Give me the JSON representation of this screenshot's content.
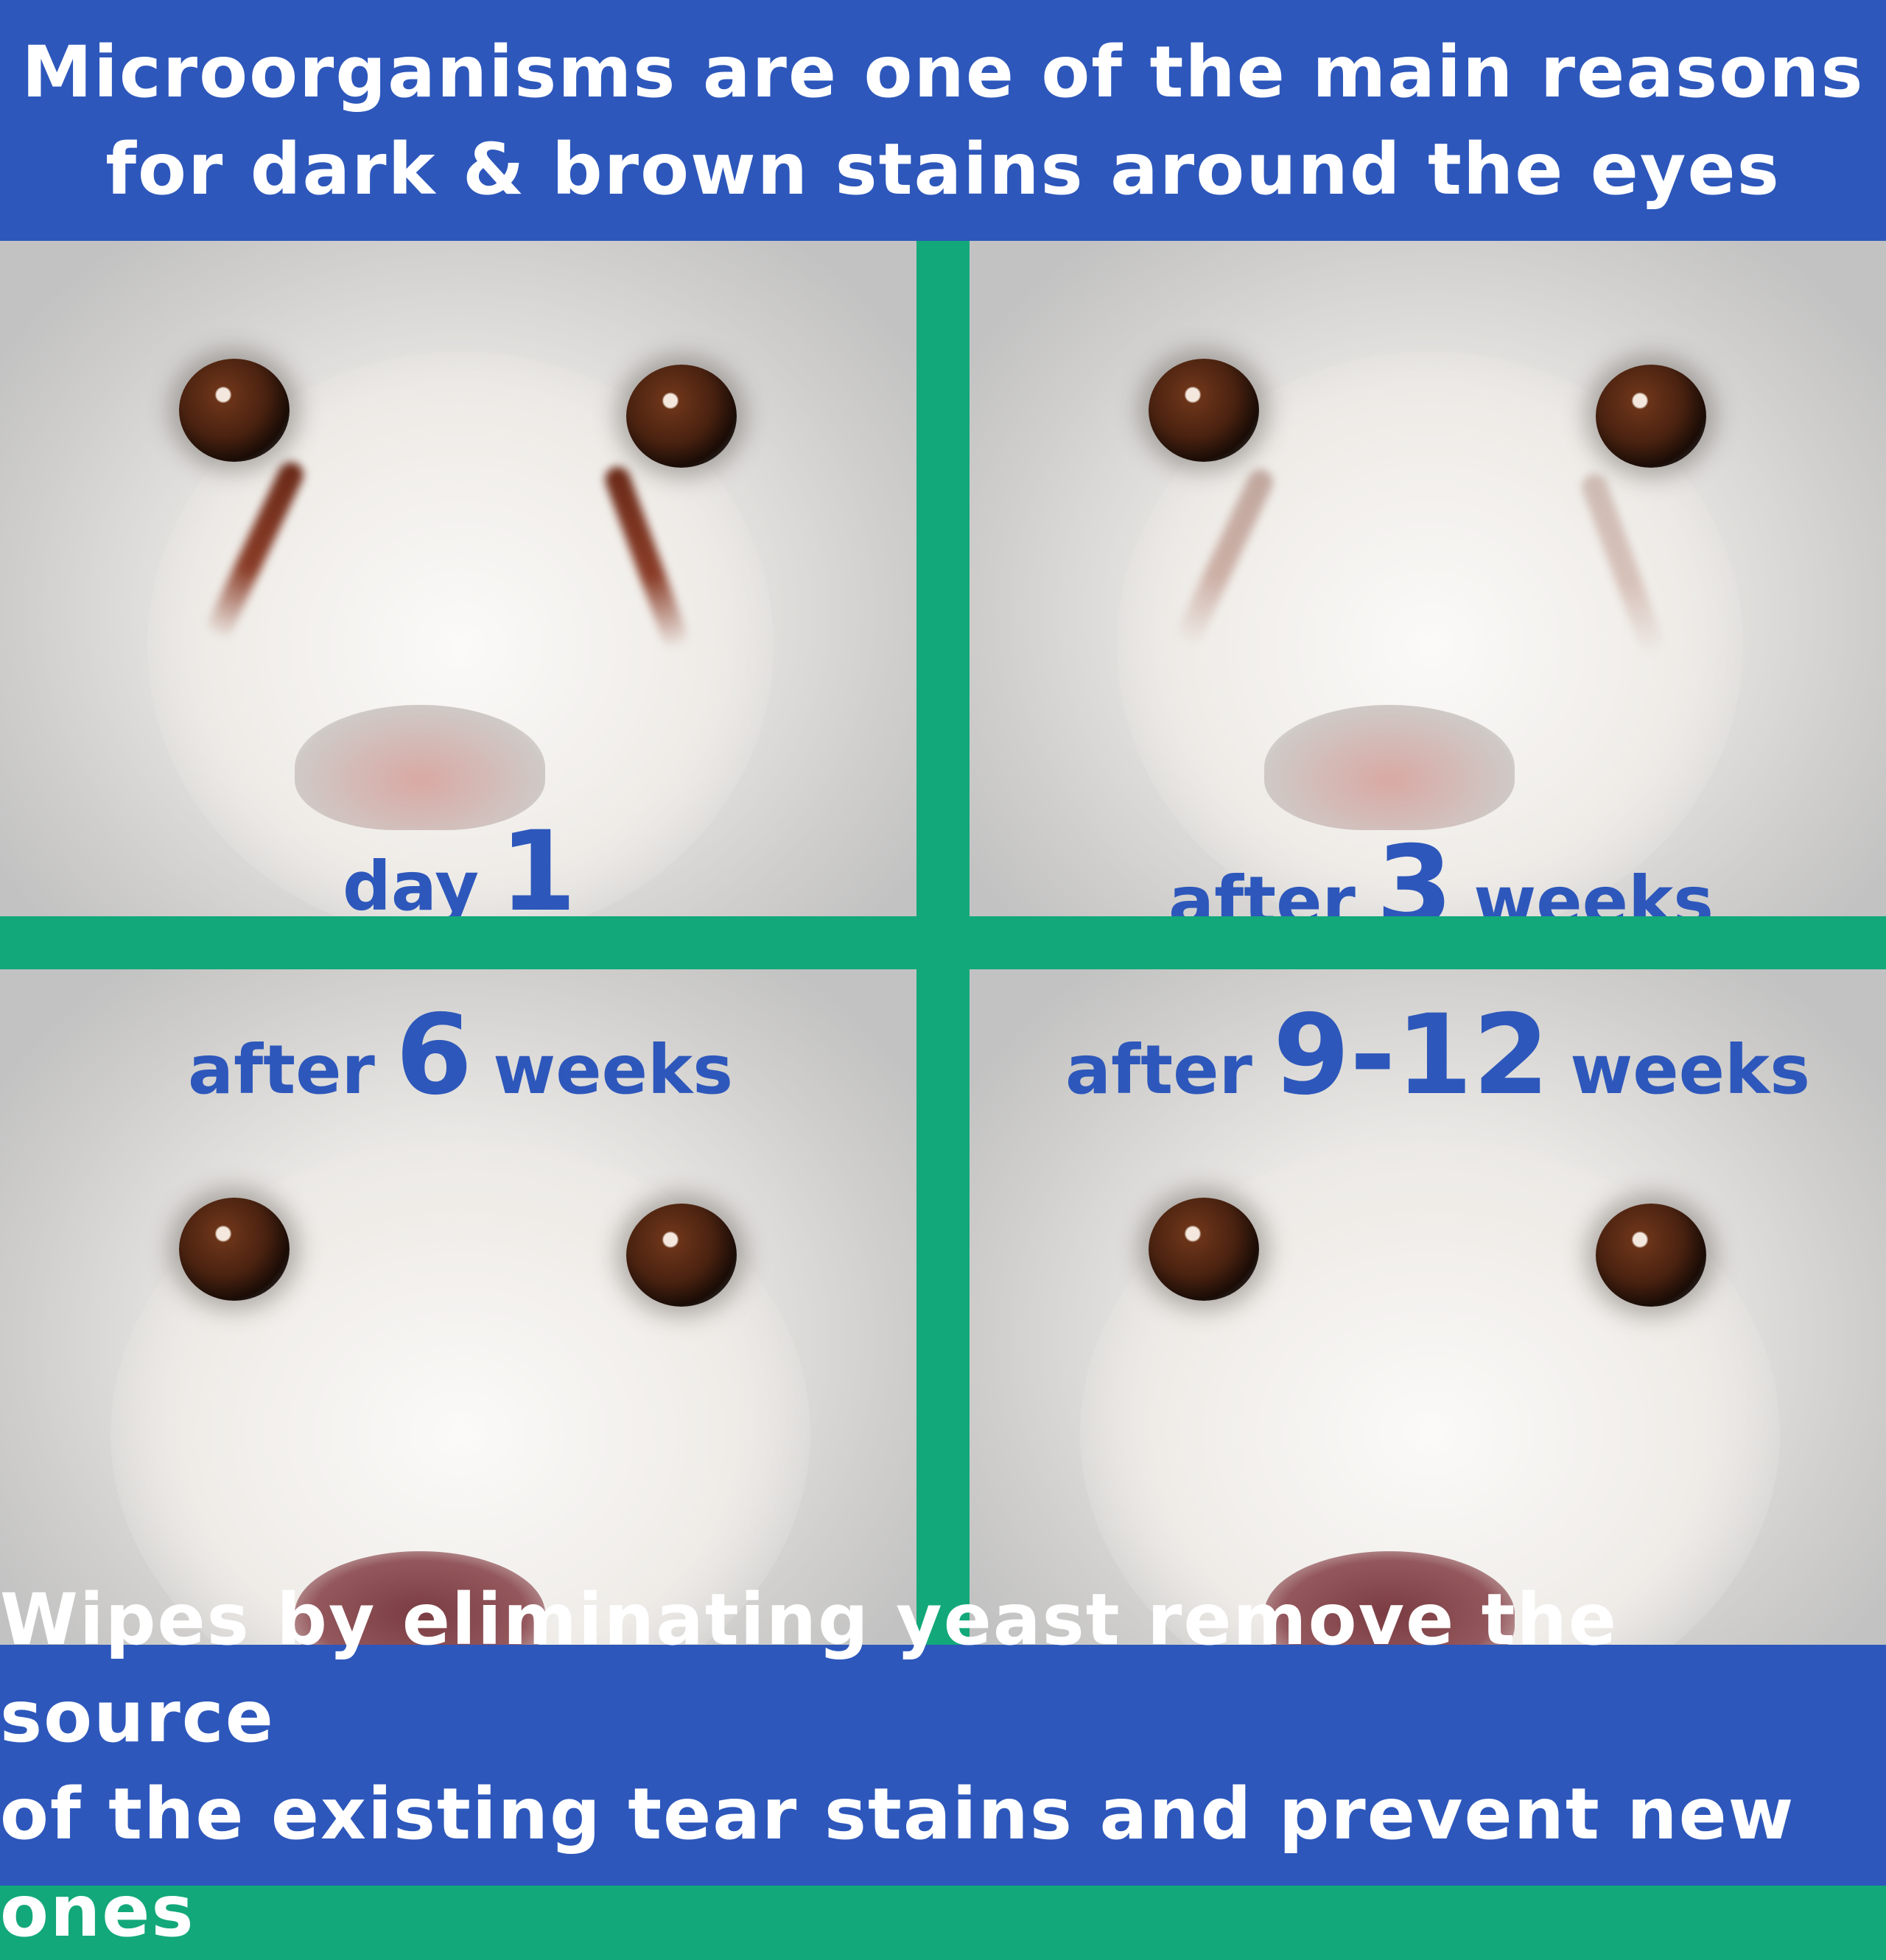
{
  "header": {
    "line1": "Microorganisms are one of the main reasons",
    "line2": "for dark & brown stains around the eyes"
  },
  "panels": [
    {
      "prefix": "day",
      "number": "1",
      "suffix": ""
    },
    {
      "prefix": "after",
      "number": "3",
      "suffix": "weeks"
    },
    {
      "prefix": "after",
      "number": "6",
      "suffix": "weeks"
    },
    {
      "prefix": "after",
      "number": "9-12",
      "suffix": "weeks"
    }
  ],
  "footer": {
    "line1": "Wipes by eliminating yeast remove the source",
    "line2": "of the existing tear stains and prevent new ones"
  },
  "colors": {
    "banner": "#2d57bb",
    "divider": "#12a87a",
    "label": "#2d57bb"
  }
}
